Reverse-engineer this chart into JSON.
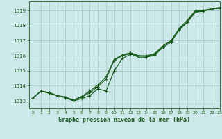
{
  "title": "Graphe pression niveau de la mer (hPa)",
  "bg_color": "#cce8e8",
  "grid_color": "#aacccc",
  "line_color": "#1a5c1a",
  "xlim": [
    -0.5,
    23
  ],
  "ylim": [
    1012.5,
    1019.6
  ],
  "yticks": [
    1013,
    1014,
    1015,
    1016,
    1017,
    1018,
    1019
  ],
  "xticks": [
    0,
    1,
    2,
    3,
    4,
    5,
    6,
    7,
    8,
    9,
    10,
    11,
    12,
    13,
    14,
    15,
    16,
    17,
    18,
    19,
    20,
    21,
    22,
    23
  ],
  "series1": {
    "x": [
      0,
      1,
      2,
      3,
      4,
      5,
      6,
      7,
      8,
      9,
      10,
      11,
      12,
      13,
      14,
      15,
      16,
      17,
      18,
      19,
      20,
      21,
      22,
      23
    ],
    "y": [
      1013.2,
      1013.65,
      1013.55,
      1013.35,
      1013.25,
      1013.05,
      1013.3,
      1013.65,
      1014.05,
      1014.6,
      1015.75,
      1016.05,
      1016.2,
      1016.0,
      1015.95,
      1016.1,
      1016.55,
      1016.95,
      1017.75,
      1018.25,
      1018.95,
      1019.0,
      1019.1,
      1019.2
    ]
  },
  "series2": {
    "x": [
      0,
      1,
      2,
      3,
      4,
      5,
      6,
      7,
      8,
      9,
      10,
      11,
      12,
      13,
      14,
      15,
      16,
      17,
      18,
      19,
      20,
      21,
      22,
      23
    ],
    "y": [
      1013.2,
      1013.65,
      1013.55,
      1013.35,
      1013.25,
      1013.05,
      1013.25,
      1013.55,
      1013.95,
      1014.45,
      1015.7,
      1016.0,
      1016.15,
      1015.9,
      1015.9,
      1016.05,
      1016.55,
      1016.9,
      1017.7,
      1018.2,
      1018.9,
      1018.95,
      1019.1,
      1019.15
    ]
  },
  "series3": {
    "x": [
      0,
      1,
      2,
      3,
      4,
      5,
      6,
      7,
      8,
      9,
      10,
      11,
      12,
      13,
      14,
      15,
      16,
      17,
      18,
      19,
      20,
      21,
      22,
      23
    ],
    "y": [
      1013.2,
      1013.65,
      1013.5,
      1013.35,
      1013.2,
      1013.0,
      1013.15,
      1013.35,
      1013.8,
      1013.65,
      1015.0,
      1015.8,
      1016.1,
      1016.0,
      1016.0,
      1016.15,
      1016.65,
      1017.0,
      1017.8,
      1018.35,
      1019.0,
      1019.0,
      1019.1,
      1019.15
    ]
  }
}
